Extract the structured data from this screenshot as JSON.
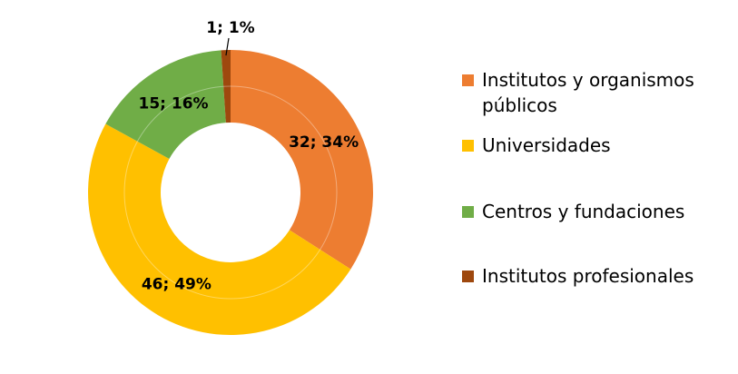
{
  "chart_data": {
    "type": "pie",
    "variant": "doughnut",
    "categories": [
      "Institutos y organismos públicos",
      "Universidades",
      "Centros y fundaciones",
      "Institutos profesionales"
    ],
    "values": [
      32,
      46,
      15,
      1
    ],
    "percentages": [
      34,
      49,
      16,
      1
    ],
    "data_labels": [
      "32; 34%",
      "46; 49%",
      "15; 16%",
      "1; 1%"
    ],
    "colors": [
      "#ED7D31",
      "#FFC000",
      "#70AD47",
      "#9E480E"
    ],
    "legend_position": "right",
    "title": ""
  },
  "legend": {
    "items": [
      {
        "label_line1": "Institutos y organismos",
        "label_line2": "públicos",
        "color": "#ED7D31"
      },
      {
        "label_line1": "Universidades",
        "label_line2": "",
        "color": "#FFC000"
      },
      {
        "label_line1": "Centros y fundaciones",
        "label_line2": "",
        "color": "#70AD47"
      },
      {
        "label_line1": "Institutos profesionales",
        "label_line2": "",
        "color": "#9E480E"
      }
    ]
  }
}
